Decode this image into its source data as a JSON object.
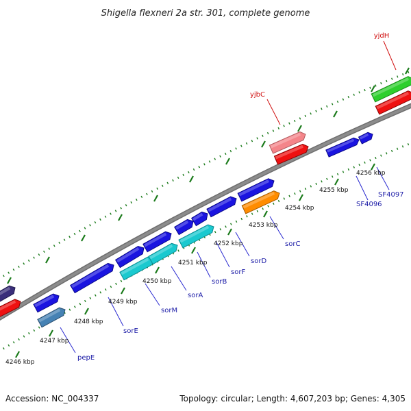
{
  "title": "Shigella flexneri 2a str. 301, complete genome",
  "footer": {
    "accession": "Accession: NC_004337",
    "summary": "Topology: circular; Length: 4,607,203 bp; Genes: 4,305"
  },
  "colors": {
    "backbone": "#8c8c8c",
    "tick": "#1a7a1a",
    "label_top": "#d01010",
    "label_bottom": "#1a1aa6",
    "leader_top": "#d01010",
    "leader_bottom": "#2a2ad0"
  },
  "ticks": [
    {
      "label": "4246 kbp"
    },
    {
      "label": "4247 kbp"
    },
    {
      "label": "4248 kbp"
    },
    {
      "label": "4249 kbp"
    },
    {
      "label": "4250 kbp"
    },
    {
      "label": "4251 kbp"
    },
    {
      "label": "4252 kbp"
    },
    {
      "label": "4253 kbp"
    },
    {
      "label": "4254 kbp"
    },
    {
      "label": "4255 kbp"
    },
    {
      "label": "4256 kbp"
    }
  ],
  "gene_labels": [
    {
      "name": "yjbC",
      "side": "top"
    },
    {
      "name": "yjdH",
      "side": "top"
    },
    {
      "name": "pepE",
      "side": "bottom"
    },
    {
      "name": "sorE",
      "side": "bottom"
    },
    {
      "name": "sorM",
      "side": "bottom"
    },
    {
      "name": "sorA",
      "side": "bottom"
    },
    {
      "name": "sorB",
      "side": "bottom"
    },
    {
      "name": "sorF",
      "side": "bottom"
    },
    {
      "name": "sorD",
      "side": "bottom"
    },
    {
      "name": "sorC",
      "side": "bottom"
    },
    {
      "name": "SF4096",
      "side": "bottom"
    },
    {
      "name": "SF4097",
      "side": "bottom"
    }
  ]
}
